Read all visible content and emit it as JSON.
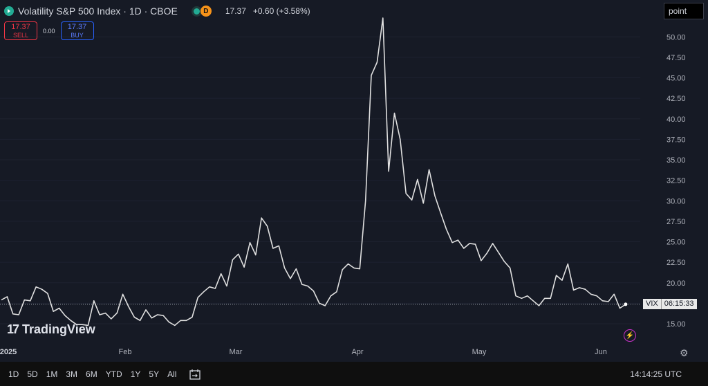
{
  "header": {
    "title": "Volatility S&P 500 Index · 1D · CBOE",
    "status_badge": "D",
    "last_price": "17.37",
    "change": "+0.60 (+3.58%)"
  },
  "trade": {
    "sell_price": "17.37",
    "sell_label": "SELL",
    "spread": "0.00",
    "buy_price": "17.37",
    "buy_label": "BUY"
  },
  "scale_mode": "point",
  "branding": {
    "mark": "17",
    "name": "TradingView"
  },
  "price_label": {
    "symbol": "VIX",
    "countdown": "06:15:33"
  },
  "time_ranges": [
    "1D",
    "5D",
    "1M",
    "3M",
    "6M",
    "YTD",
    "1Y",
    "5Y",
    "All"
  ],
  "clock": "14:14:25 UTC",
  "colors": {
    "background": "#161a25",
    "line": "#e0e0e0",
    "sell": "#f23645",
    "buy": "#2962ff"
  },
  "chart_data": {
    "type": "line",
    "series": [
      {
        "name": "VIX"
      }
    ],
    "y_ticks": [
      "15.00",
      "17.50",
      "20.00",
      "22.50",
      "25.00",
      "27.50",
      "30.00",
      "32.50",
      "35.00",
      "37.50",
      "40.00",
      "42.50",
      "45.00",
      "47.50",
      "50.00"
    ],
    "x_ticks": [
      "2025",
      "Feb",
      "Mar",
      "Apr",
      "May",
      "Jun"
    ],
    "ylim": [
      12.2,
      53.9
    ],
    "values": [
      17.9,
      18.3,
      16.2,
      16.1,
      17.9,
      17.8,
      19.5,
      19.2,
      18.7,
      16.5,
      16.9,
      16.0,
      15.4,
      14.9,
      14.9,
      14.8,
      17.8,
      16.1,
      16.3,
      15.6,
      16.3,
      18.6,
      17.1,
      15.8,
      15.4,
      16.7,
      15.7,
      16.1,
      16.0,
      15.2,
      14.8,
      15.4,
      15.4,
      15.8,
      18.2,
      18.9,
      19.5,
      19.3,
      21.1,
      19.6,
      22.8,
      23.5,
      21.9,
      24.9,
      23.4,
      27.9,
      26.9,
      24.2,
      24.5,
      21.8,
      20.5,
      21.7,
      19.8,
      19.6,
      19.0,
      17.5,
      17.2,
      18.4,
      18.9,
      21.6,
      22.3,
      21.8,
      21.7,
      30.0,
      45.3,
      46.9,
      52.3,
      33.6,
      40.7,
      37.5,
      30.9,
      30.1,
      32.6,
      29.7,
      33.8,
      30.6,
      28.5,
      26.5,
      24.9,
      25.2,
      24.2,
      24.8,
      24.7,
      22.7,
      23.6,
      24.8,
      23.7,
      22.6,
      21.8,
      18.4,
      18.1,
      18.4,
      17.8,
      17.2,
      18.1,
      18.1,
      20.9,
      20.3,
      22.3,
      19.1,
      19.4,
      19.2,
      18.6,
      18.4,
      17.8,
      17.7,
      18.6,
      16.9,
      17.37
    ]
  }
}
